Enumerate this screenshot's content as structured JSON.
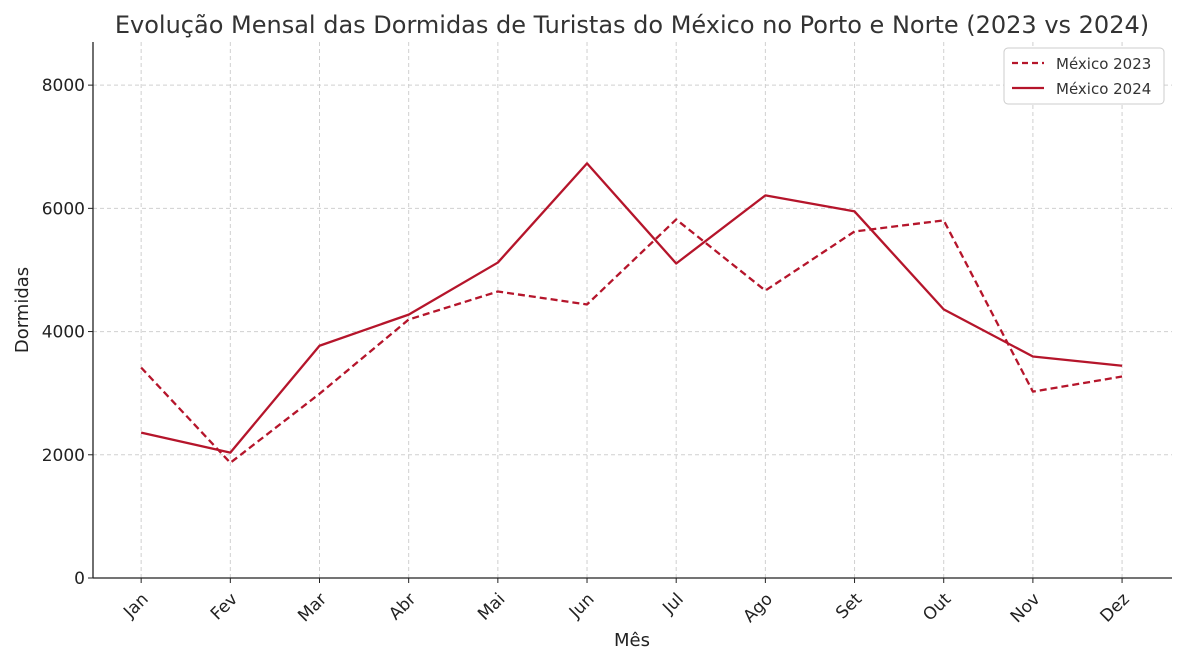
{
  "chart_data": {
    "type": "line",
    "title": "Evolução Mensal das Dormidas de Turistas do México no Porto e Norte (2023 vs 2024)",
    "xlabel": "Mês",
    "ylabel": "Dormidas",
    "categories": [
      "Jan",
      "Fev",
      "Mar",
      "Abr",
      "Mai",
      "Jun",
      "Jul",
      "Ago",
      "Set",
      "Out",
      "Nov",
      "Dez"
    ],
    "yticks": [
      0,
      2000,
      4000,
      6000,
      8000
    ],
    "ylim": [
      0,
      8700
    ],
    "grid": true,
    "legend_position": "top-right",
    "color": "#b5152b",
    "series": [
      {
        "name": "México 2023",
        "style": "dashed",
        "values": [
          3415,
          1870,
          2990,
          4195,
          4650,
          4440,
          5820,
          4665,
          5625,
          5805,
          3025,
          3270
        ]
      },
      {
        "name": "México 2024",
        "style": "solid",
        "values": [
          2360,
          2035,
          3770,
          4275,
          5120,
          6730,
          5105,
          6210,
          5950,
          4360,
          3595,
          3445
        ]
      }
    ]
  }
}
